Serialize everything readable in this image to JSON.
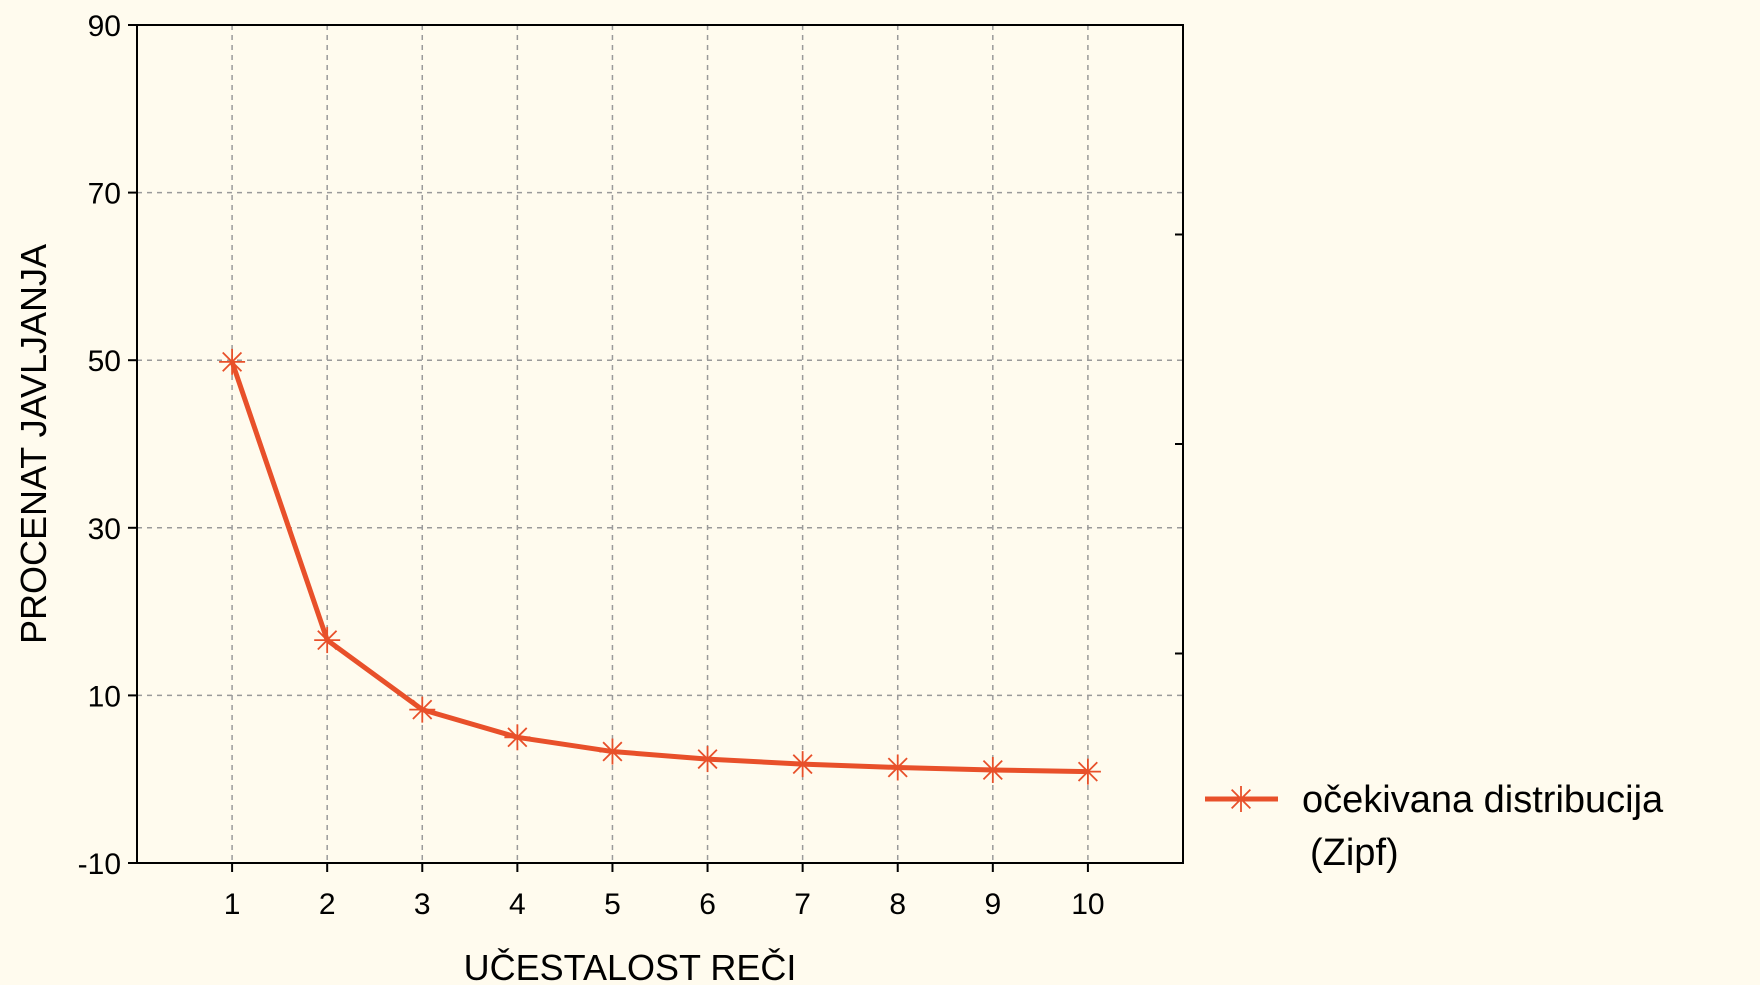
{
  "chart_data": {
    "type": "line",
    "title": "",
    "xlabel": "UČESTALOST REČI",
    "ylabel": "PROCENAT JAVLJANJA",
    "x": [
      1,
      2,
      3,
      4,
      5,
      6,
      7,
      8,
      9,
      10
    ],
    "x_ticks": [
      "1",
      "2",
      "3",
      "4",
      "5",
      "6",
      "7",
      "8",
      "9",
      "10"
    ],
    "xlim": [
      0,
      11
    ],
    "ylim": [
      -10,
      90
    ],
    "y_ticks": [
      -10,
      10,
      30,
      50,
      70,
      90
    ],
    "grid": true,
    "legend_position": "right",
    "series": [
      {
        "name_line1": "očekivana distribucija",
        "name_line2": "(Zipf)",
        "color": "#e8502a",
        "marker": "asterisk",
        "values": [
          49.8,
          16.6,
          8.3,
          5.0,
          3.3,
          2.4,
          1.8,
          1.4,
          1.1,
          0.9
        ]
      }
    ]
  }
}
